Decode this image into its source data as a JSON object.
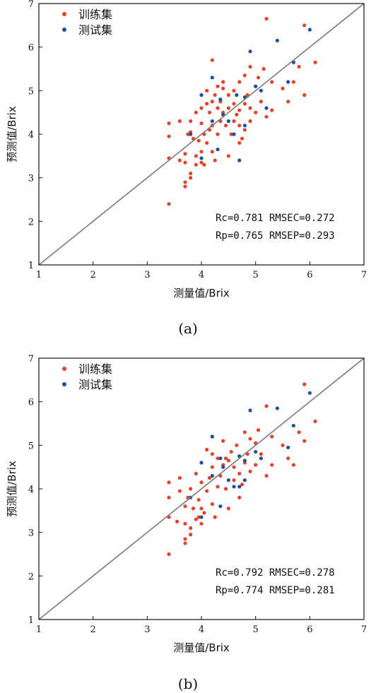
{
  "colors": {
    "train": "#e8402a",
    "test": "#1f4e9e",
    "diag": "#7a7a7a",
    "axis": "#111111"
  },
  "chart_data": [
    {
      "type": "scatter",
      "caption": "(a)",
      "xlabel": "测量值/Brix",
      "ylabel": "预测值/Brix",
      "xlim": [
        1,
        7
      ],
      "ylim": [
        1,
        7
      ],
      "xticks": [
        1,
        2,
        3,
        4,
        5,
        6,
        7
      ],
      "yticks": [
        1,
        2,
        3,
        4,
        5,
        6,
        7
      ],
      "diagonal": [
        [
          1,
          1
        ],
        [
          7,
          7
        ]
      ],
      "legend": [
        "训练集",
        "测试集"
      ],
      "annotations": [
        "Rc=0.781 RMSEC=0.272",
        "Rp=0.765 RMSEP=0.293"
      ],
      "series": [
        {
          "name": "训练集",
          "points": [
            [
              3.4,
              2.4
            ],
            [
              3.4,
              3.45
            ],
            [
              3.4,
              3.95
            ],
            [
              3.4,
              4.25
            ],
            [
              3.6,
              3.4
            ],
            [
              3.6,
              4.3
            ],
            [
              3.7,
              2.8
            ],
            [
              3.7,
              2.9
            ],
            [
              3.7,
              3.35
            ],
            [
              3.7,
              3.55
            ],
            [
              3.75,
              4.0
            ],
            [
              3.8,
              3.0
            ],
            [
              3.8,
              3.1
            ],
            [
              3.8,
              4.05
            ],
            [
              3.8,
              4.3
            ],
            [
              3.85,
              3.9
            ],
            [
              3.9,
              3.3
            ],
            [
              3.9,
              3.5
            ],
            [
              3.9,
              4.5
            ],
            [
              3.95,
              3.85
            ],
            [
              4.0,
              3.35
            ],
            [
              4.0,
              3.6
            ],
            [
              4.0,
              4.25
            ],
            [
              4.0,
              4.6
            ],
            [
              4.05,
              3.3
            ],
            [
              4.05,
              4.0
            ],
            [
              4.1,
              3.8
            ],
            [
              4.1,
              4.7
            ],
            [
              4.1,
              5.0
            ],
            [
              4.15,
              4.1
            ],
            [
              4.15,
              4.5
            ],
            [
              4.2,
              3.6
            ],
            [
              4.2,
              4.2
            ],
            [
              4.2,
              4.75
            ],
            [
              4.2,
              5.7
            ],
            [
              4.25,
              3.4
            ],
            [
              4.25,
              4.9
            ],
            [
              4.3,
              4.0
            ],
            [
              4.3,
              4.6
            ],
            [
              4.3,
              5.1
            ],
            [
              4.35,
              4.3
            ],
            [
              4.35,
              4.75
            ],
            [
              4.4,
              4.5
            ],
            [
              4.4,
              5.05
            ],
            [
              4.4,
              5.2
            ],
            [
              4.45,
              4.2
            ],
            [
              4.5,
              3.5
            ],
            [
              4.5,
              4.6
            ],
            [
              4.5,
              4.9
            ],
            [
              4.55,
              4.0
            ],
            [
              4.6,
              4.3
            ],
            [
              4.6,
              4.7
            ],
            [
              4.6,
              5.0
            ],
            [
              4.65,
              4.45
            ],
            [
              4.7,
              3.8
            ],
            [
              4.7,
              4.2
            ],
            [
              4.7,
              4.55
            ],
            [
              4.7,
              5.2
            ],
            [
              4.75,
              3.9
            ],
            [
              4.8,
              4.1
            ],
            [
              4.8,
              4.7
            ],
            [
              4.8,
              5.35
            ],
            [
              4.85,
              4.9
            ],
            [
              4.9,
              4.3
            ],
            [
              4.9,
              4.6
            ],
            [
              4.9,
              5.55
            ],
            [
              5.0,
              4.5
            ],
            [
              5.0,
              5.1
            ],
            [
              5.05,
              5.3
            ],
            [
              5.1,
              4.75
            ],
            [
              5.15,
              5.5
            ],
            [
              5.2,
              4.4
            ],
            [
              5.2,
              6.65
            ],
            [
              5.3,
              4.55
            ],
            [
              5.3,
              5.2
            ],
            [
              5.5,
              5.05
            ],
            [
              5.6,
              4.75
            ],
            [
              5.7,
              5.2
            ],
            [
              5.8,
              5.55
            ],
            [
              5.9,
              4.9
            ],
            [
              5.9,
              6.5
            ],
            [
              6.1,
              5.65
            ]
          ]
        },
        {
          "name": "测试集",
          "points": [
            [
              3.8,
              4.0
            ],
            [
              4.0,
              3.45
            ],
            [
              4.0,
              4.9
            ],
            [
              4.2,
              4.3
            ],
            [
              4.2,
              5.3
            ],
            [
              4.3,
              3.65
            ],
            [
              4.35,
              4.8
            ],
            [
              4.5,
              4.3
            ],
            [
              4.6,
              4.0
            ],
            [
              4.65,
              4.9
            ],
            [
              4.7,
              3.4
            ],
            [
              4.8,
              4.2
            ],
            [
              4.8,
              4.85
            ],
            [
              4.9,
              5.9
            ],
            [
              5.0,
              5.1
            ],
            [
              5.1,
              5.0
            ],
            [
              5.4,
              6.15
            ],
            [
              5.6,
              5.2
            ],
            [
              5.7,
              5.65
            ],
            [
              6.0,
              6.4
            ],
            [
              5.2,
              4.6
            ],
            [
              4.4,
              4.45
            ]
          ]
        }
      ]
    },
    {
      "type": "scatter",
      "caption": "(b)",
      "xlabel": "测量值/Brix",
      "ylabel": "预测值/Brix",
      "xlim": [
        1,
        7
      ],
      "ylim": [
        1,
        7
      ],
      "xticks": [
        1,
        2,
        3,
        4,
        5,
        6,
        7
      ],
      "yticks": [
        1,
        2,
        3,
        4,
        5,
        6,
        7
      ],
      "diagonal": [
        [
          1,
          1
        ],
        [
          7,
          7
        ]
      ],
      "legend": [
        "训练集",
        "测试集"
      ],
      "annotations": [
        "Rc=0.792 RMSEC=0.278",
        "Rp=0.774 RMSEP=0.281"
      ],
      "series": [
        {
          "name": "训练集",
          "points": [
            [
              3.4,
              2.5
            ],
            [
              3.4,
              3.35
            ],
            [
              3.4,
              3.8
            ],
            [
              3.4,
              4.15
            ],
            [
              3.55,
              3.25
            ],
            [
              3.6,
              3.95
            ],
            [
              3.6,
              4.25
            ],
            [
              3.7,
              2.75
            ],
            [
              3.7,
              2.85
            ],
            [
              3.7,
              3.2
            ],
            [
              3.7,
              3.6
            ],
            [
              3.75,
              3.8
            ],
            [
              3.8,
              2.95
            ],
            [
              3.8,
              3.1
            ],
            [
              3.8,
              4.0
            ],
            [
              3.85,
              3.55
            ],
            [
              3.9,
              3.3
            ],
            [
              3.9,
              4.35
            ],
            [
              3.95,
              3.75
            ],
            [
              4.0,
              3.2
            ],
            [
              4.0,
              3.55
            ],
            [
              4.0,
              4.15
            ],
            [
              4.0,
              4.6
            ],
            [
              4.05,
              3.45
            ],
            [
              4.1,
              3.95
            ],
            [
              4.1,
              4.9
            ],
            [
              4.15,
              4.25
            ],
            [
              4.2,
              3.65
            ],
            [
              4.2,
              4.5
            ],
            [
              4.2,
              4.8
            ],
            [
              4.25,
              3.35
            ],
            [
              4.3,
              4.05
            ],
            [
              4.3,
              4.7
            ],
            [
              4.35,
              4.3
            ],
            [
              4.4,
              4.55
            ],
            [
              4.4,
              5.1
            ],
            [
              4.45,
              4.0
            ],
            [
              4.5,
              3.55
            ],
            [
              4.5,
              4.65
            ],
            [
              4.55,
              4.85
            ],
            [
              4.6,
              4.2
            ],
            [
              4.6,
              4.5
            ],
            [
              4.65,
              5.0
            ],
            [
              4.7,
              3.8
            ],
            [
              4.7,
              4.35
            ],
            [
              4.75,
              4.1
            ],
            [
              4.8,
              4.6
            ],
            [
              4.8,
              5.3
            ],
            [
              4.85,
              4.8
            ],
            [
              4.9,
              4.4
            ],
            [
              4.9,
              5.15
            ],
            [
              5.0,
              4.55
            ],
            [
              5.0,
              5.05
            ],
            [
              5.05,
              5.35
            ],
            [
              5.1,
              4.8
            ],
            [
              5.2,
              4.3
            ],
            [
              5.2,
              5.9
            ],
            [
              5.3,
              4.55
            ],
            [
              5.3,
              5.2
            ],
            [
              5.5,
              5.0
            ],
            [
              5.6,
              4.7
            ],
            [
              5.7,
              4.55
            ],
            [
              5.8,
              5.3
            ],
            [
              5.9,
              5.1
            ],
            [
              5.9,
              6.4
            ],
            [
              6.1,
              5.55
            ],
            [
              4.45,
              4.7
            ],
            [
              3.95,
              3.35
            ]
          ]
        },
        {
          "name": "测试集",
          "points": [
            [
              3.8,
              3.8
            ],
            [
              4.0,
              3.35
            ],
            [
              4.0,
              4.6
            ],
            [
              4.2,
              4.3
            ],
            [
              4.2,
              5.2
            ],
            [
              4.35,
              3.6
            ],
            [
              4.35,
              4.7
            ],
            [
              4.5,
              4.2
            ],
            [
              4.6,
              4.05
            ],
            [
              4.7,
              4.75
            ],
            [
              4.7,
              4.05
            ],
            [
              4.8,
              4.2
            ],
            [
              4.8,
              4.65
            ],
            [
              4.9,
              5.8
            ],
            [
              5.0,
              4.85
            ],
            [
              5.1,
              4.7
            ],
            [
              5.4,
              5.85
            ],
            [
              5.6,
              4.95
            ],
            [
              5.7,
              5.45
            ],
            [
              6.0,
              6.2
            ],
            [
              4.4,
              4.5
            ]
          ]
        }
      ]
    }
  ]
}
